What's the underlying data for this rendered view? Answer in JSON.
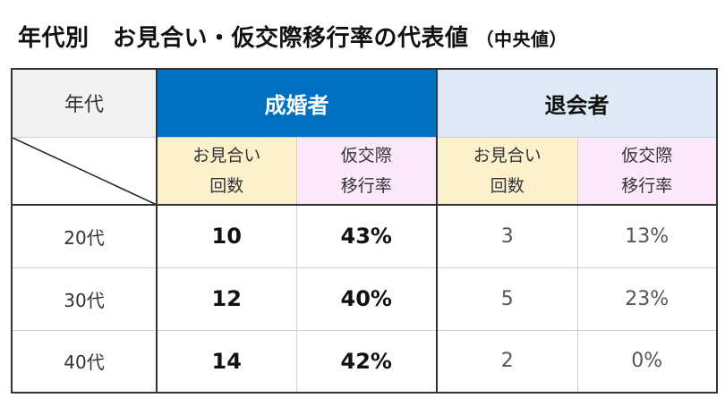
{
  "title": {
    "main": "年代別　お見合い・仮交際移行率の代表値",
    "sub": "（中央値）"
  },
  "table": {
    "age_header": "年代",
    "group_married": "成婚者",
    "group_left": "退会者",
    "sub_meetings_line1": "お見合い",
    "sub_meetings_line2": "回数",
    "sub_rate_line1": "仮交際",
    "sub_rate_line2": "移行率",
    "rows": [
      {
        "age": "20代",
        "married_meetings": "10",
        "married_rate": "43%",
        "left_meetings": "3",
        "left_rate": "13%"
      },
      {
        "age": "30代",
        "married_meetings": "12",
        "married_rate": "40%",
        "left_meetings": "5",
        "left_rate": "23%"
      },
      {
        "age": "40代",
        "married_meetings": "14",
        "married_rate": "42%",
        "left_meetings": "2",
        "left_rate": "0%"
      }
    ]
  },
  "colors": {
    "married_header": "#0070c0",
    "left_header": "#dde9f4",
    "meetings_bg": "#fdf1cc",
    "rate_bg": "#fce8fb",
    "age_header_bg": "#f2f2f2"
  }
}
